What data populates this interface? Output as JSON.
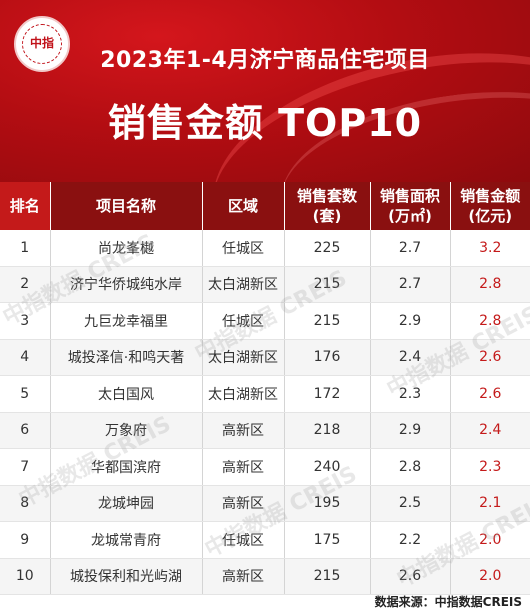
{
  "header": {
    "logo_text": "中指",
    "title_line1": "2023年1-4月济宁商品住宅项目",
    "title_line2": "销售金额 TOP10"
  },
  "table": {
    "columns": [
      "排名",
      "项目名称",
      "区域",
      "销售套数\n(套)",
      "销售面积\n(万㎡)",
      "销售金额\n(亿元)"
    ],
    "rows": [
      [
        "1",
        "尚龙峯樾",
        "任城区",
        "225",
        "2.7",
        "3.2"
      ],
      [
        "2",
        "济宁华侨城纯水岸",
        "太白湖新区",
        "215",
        "2.7",
        "2.8"
      ],
      [
        "3",
        "九巨龙幸福里",
        "任城区",
        "215",
        "2.9",
        "2.8"
      ],
      [
        "4",
        "城投泽信·和鸣天著",
        "太白湖新区",
        "176",
        "2.4",
        "2.6"
      ],
      [
        "5",
        "太白国风",
        "太白湖新区",
        "172",
        "2.3",
        "2.6"
      ],
      [
        "6",
        "万象府",
        "高新区",
        "218",
        "2.9",
        "2.4"
      ],
      [
        "7",
        "华都国滨府",
        "高新区",
        "240",
        "2.8",
        "2.3"
      ],
      [
        "8",
        "龙城坤园",
        "高新区",
        "195",
        "2.5",
        "2.1"
      ],
      [
        "9",
        "龙城常青府",
        "任城区",
        "175",
        "2.2",
        "2.0"
      ],
      [
        "10",
        "城投保利和光屿湖",
        "高新区",
        "215",
        "2.6",
        "2.0"
      ]
    ]
  },
  "watermark": "中指数据 CREIS",
  "footer": "数据来源：中指数据CREIS"
}
